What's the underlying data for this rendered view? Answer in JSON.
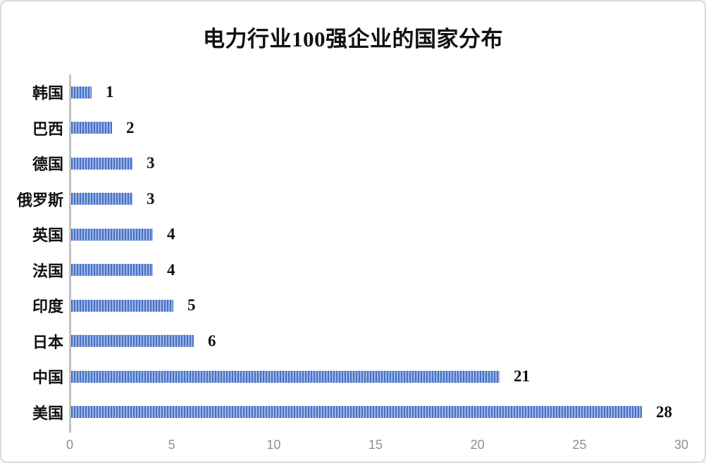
{
  "frame": {
    "background": "#ffffff",
    "border_color": "#dcdcdc"
  },
  "chart_data": {
    "type": "bar",
    "orientation": "horizontal",
    "title": "电力行业100强企业的国家分布",
    "categories": [
      "韩国",
      "巴西",
      "德国",
      "俄罗斯",
      "英国",
      "法国",
      "印度",
      "日本",
      "中国",
      "美国"
    ],
    "values": [
      1,
      2,
      3,
      3,
      4,
      4,
      5,
      6,
      21,
      28
    ],
    "value_labels": [
      "1",
      "2",
      "3",
      "3",
      "4",
      "4",
      "5",
      "6",
      "21",
      "28"
    ],
    "xlabel": "",
    "ylabel": "",
    "xlim": [
      0,
      30
    ],
    "x_ticks": [
      0,
      5,
      10,
      15,
      20,
      25,
      30
    ],
    "grid": false,
    "legend": null,
    "colors": {
      "bar_dark": "#4573c7",
      "bar_light": "#9fb3e3",
      "axis_line": "#c2c2c2",
      "tick_text": "#909090",
      "label_text": "#111111"
    }
  }
}
